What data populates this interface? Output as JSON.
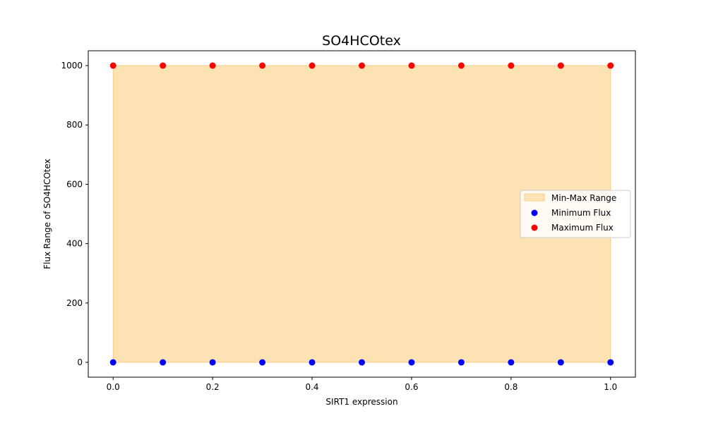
{
  "chart_data": {
    "type": "scatter",
    "title": "SO4HCOtex",
    "xlabel": "SIRT1 expression",
    "ylabel": "Flux Range of SO4HCOtex",
    "xlim": [
      -0.05,
      1.05
    ],
    "ylim": [
      -50,
      1050
    ],
    "x_ticks": [
      0.0,
      0.2,
      0.4,
      0.6,
      0.8,
      1.0
    ],
    "x_tick_labels": [
      "0.0",
      "0.2",
      "0.4",
      "0.6",
      "0.8",
      "1.0"
    ],
    "y_ticks": [
      0,
      200,
      400,
      600,
      800,
      1000
    ],
    "y_tick_labels": [
      "0",
      "200",
      "400",
      "600",
      "800",
      "1000"
    ],
    "grid": false,
    "legend_position": "center-right",
    "x": [
      0.0,
      0.1,
      0.2,
      0.3,
      0.4,
      0.5,
      0.6,
      0.7,
      0.8,
      0.9,
      1.0
    ],
    "fill": {
      "name": "Min-Max Range",
      "color": "#fde2b3",
      "edge_color": "#f9cf8a",
      "lower": [
        0,
        0,
        0,
        0,
        0,
        0,
        0,
        0,
        0,
        0,
        0
      ],
      "upper": [
        1000,
        1000,
        1000,
        1000,
        1000,
        1000,
        1000,
        1000,
        1000,
        1000,
        1000
      ]
    },
    "series": [
      {
        "name": "Minimum Flux",
        "color": "#0000ff",
        "values": [
          0,
          0,
          0,
          0,
          0,
          0,
          0,
          0,
          0,
          0,
          0
        ]
      },
      {
        "name": "Maximum Flux",
        "color": "#ff0000",
        "values": [
          1000,
          1000,
          1000,
          1000,
          1000,
          1000,
          1000,
          1000,
          1000,
          1000,
          1000
        ]
      }
    ]
  }
}
